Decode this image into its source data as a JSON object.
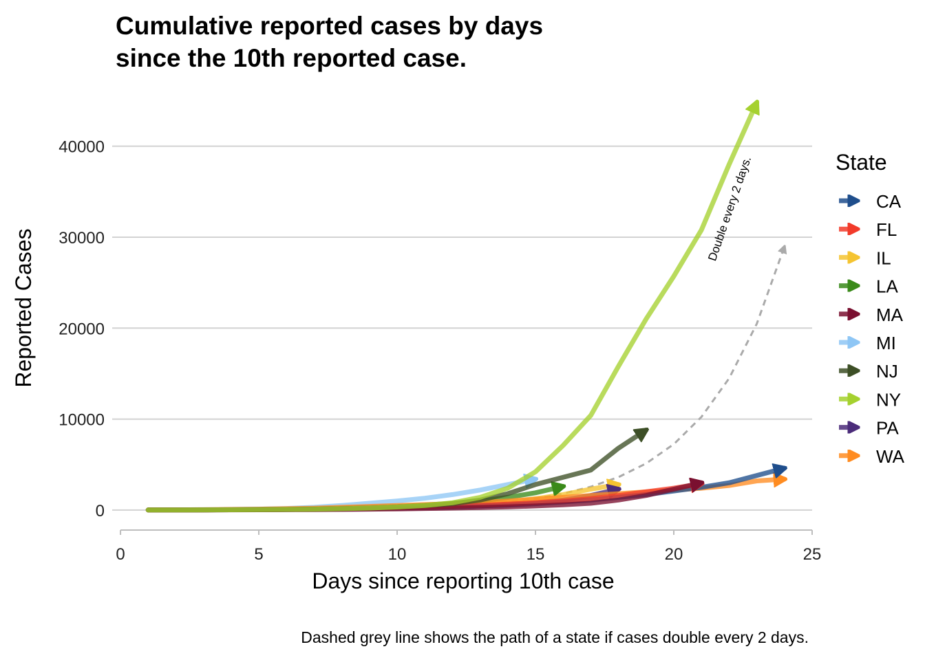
{
  "chart_data": {
    "type": "line",
    "title_lines": [
      "Cumulative reported cases by days",
      "since the 10th reported case."
    ],
    "xlabel": "Days since reporting 10th case",
    "ylabel": "Reported Cases",
    "caption": "Dashed grey line shows the path of a state if cases double every 2 days.",
    "annotation": "Double every 2 days.",
    "xlim": [
      -0.3,
      25.0
    ],
    "ylim": [
      -2200,
      47000
    ],
    "x_ticks": [
      0,
      5,
      10,
      15,
      20,
      25
    ],
    "y_ticks": [
      0,
      10000,
      20000,
      30000,
      40000
    ],
    "grid": "horizontal",
    "legend": {
      "title": "State",
      "position": "right"
    },
    "reference": {
      "name": "Double every 2 days.",
      "style": "dashed",
      "color": "#aaaaaa",
      "x": [
        1,
        2,
        3,
        4,
        5,
        6,
        7,
        8,
        9,
        10,
        11,
        12,
        13,
        14,
        15,
        16,
        17,
        18,
        19,
        20,
        21,
        22,
        23,
        24
      ],
      "y": [
        10,
        14,
        20,
        28,
        40,
        57,
        80,
        113,
        160,
        226,
        320,
        453,
        640,
        905,
        1280,
        1810,
        2560,
        3620,
        5120,
        7241,
        10240,
        14482,
        20480,
        28963
      ]
    },
    "series": [
      {
        "name": "CA",
        "color": "#1f4e8c",
        "x": [
          1,
          2,
          3,
          4,
          5,
          6,
          7,
          8,
          9,
          10,
          11,
          12,
          13,
          14,
          15,
          16,
          17,
          18,
          19,
          20,
          21,
          22,
          23,
          24
        ],
        "y": [
          10,
          15,
          20,
          30,
          45,
          60,
          80,
          120,
          170,
          220,
          280,
          350,
          450,
          550,
          700,
          900,
          1100,
          1400,
          1700,
          2100,
          2500,
          3000,
          3800,
          4600
        ]
      },
      {
        "name": "FL",
        "color": "#f23b2a",
        "x": [
          1,
          2,
          3,
          4,
          5,
          6,
          7,
          8,
          9,
          10,
          11,
          12,
          13,
          14,
          15,
          16,
          17,
          18,
          19,
          20,
          21
        ],
        "y": [
          10,
          15,
          25,
          35,
          50,
          70,
          100,
          150,
          200,
          250,
          330,
          420,
          520,
          650,
          800,
          1000,
          1250,
          1600,
          2000,
          2400,
          2900
        ]
      },
      {
        "name": "IL",
        "color": "#f5c431",
        "x": [
          1,
          2,
          3,
          4,
          5,
          6,
          7,
          8,
          9,
          10,
          11,
          12,
          13,
          14,
          15,
          16,
          17,
          18
        ],
        "y": [
          10,
          15,
          20,
          30,
          45,
          65,
          90,
          130,
          180,
          260,
          360,
          480,
          650,
          900,
          1250,
          1700,
          2300,
          2800
        ]
      },
      {
        "name": "LA",
        "color": "#3a8a1a",
        "x": [
          1,
          2,
          3,
          4,
          5,
          6,
          7,
          8,
          9,
          10,
          11,
          12,
          13,
          14,
          15,
          16
        ],
        "y": [
          10,
          15,
          25,
          40,
          60,
          90,
          140,
          200,
          290,
          400,
          550,
          750,
          1000,
          1400,
          1900,
          2600
        ]
      },
      {
        "name": "MA",
        "color": "#7a1030",
        "x": [
          1,
          2,
          3,
          4,
          5,
          6,
          7,
          8,
          9,
          10,
          11,
          12,
          13,
          14,
          15,
          16,
          17,
          18,
          19,
          20,
          21
        ],
        "y": [
          10,
          12,
          15,
          20,
          28,
          38,
          50,
          70,
          95,
          130,
          170,
          220,
          280,
          350,
          450,
          580,
          750,
          1100,
          1600,
          2300,
          3000
        ]
      },
      {
        "name": "MI",
        "color": "#8ec6f5",
        "x": [
          1,
          2,
          3,
          4,
          5,
          6,
          7,
          8,
          9,
          10,
          11,
          12,
          13,
          14,
          15
        ],
        "y": [
          10,
          20,
          35,
          60,
          100,
          170,
          300,
          500,
          750,
          1000,
          1300,
          1700,
          2200,
          2800,
          3400
        ]
      },
      {
        "name": "NJ",
        "color": "#3d4f26",
        "x": [
          1,
          2,
          3,
          4,
          5,
          6,
          7,
          8,
          9,
          10,
          11,
          12,
          13,
          14,
          15,
          16,
          17,
          18,
          19
        ],
        "y": [
          10,
          15,
          25,
          35,
          50,
          70,
          100,
          150,
          220,
          330,
          480,
          700,
          1100,
          1800,
          2800,
          3600,
          4400,
          6800,
          8800
        ]
      },
      {
        "name": "NY",
        "color": "#a5d12f",
        "x": [
          1,
          2,
          3,
          4,
          5,
          6,
          7,
          8,
          9,
          10,
          11,
          12,
          13,
          14,
          15,
          16,
          17,
          18,
          19,
          20,
          21,
          22,
          23
        ],
        "y": [
          10,
          15,
          22,
          30,
          45,
          70,
          100,
          150,
          220,
          330,
          500,
          800,
          1400,
          2400,
          4200,
          7100,
          10400,
          15800,
          21000,
          25700,
          30800,
          38000,
          44800
        ]
      },
      {
        "name": "PA",
        "color": "#4b2c7a",
        "x": [
          1,
          2,
          3,
          4,
          5,
          6,
          7,
          8,
          9,
          10,
          11,
          12,
          13,
          14,
          15,
          16,
          17,
          18
        ],
        "y": [
          10,
          15,
          20,
          30,
          40,
          60,
          80,
          110,
          150,
          200,
          260,
          350,
          450,
          600,
          800,
          1100,
          1600,
          2300
        ]
      },
      {
        "name": "WA",
        "color": "#ff8c21",
        "x": [
          1,
          2,
          3,
          4,
          5,
          6,
          7,
          8,
          9,
          10,
          11,
          12,
          13,
          14,
          15,
          16,
          17,
          18,
          19,
          20,
          21,
          22,
          23,
          24
        ],
        "y": [
          10,
          20,
          40,
          70,
          100,
          150,
          200,
          300,
          400,
          500,
          600,
          700,
          850,
          1000,
          1200,
          1400,
          1600,
          1800,
          2000,
          2200,
          2400,
          2700,
          3200,
          3400
        ]
      }
    ]
  }
}
